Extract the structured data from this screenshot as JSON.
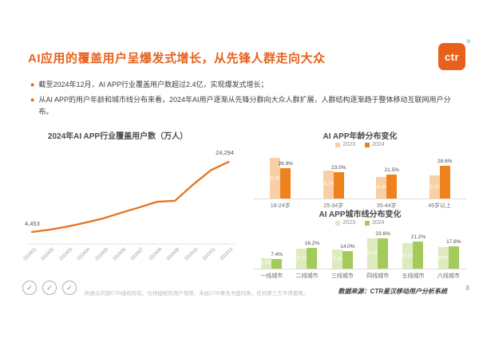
{
  "slide": {
    "title": "AI应用的覆盖用户呈爆发式增长，从先锋人群走向大众",
    "logo": {
      "text": "ctr",
      "mark": "®"
    },
    "bullets": [
      "截至2024年12月，AI APP行业覆盖用户数超过2.4亿，实现爆发式增长；",
      "从AI APP的用户年龄和城市线分布来看，2024年AI用户逐渐从先锋分群向大众人群扩展，人群结构逐渐趋于整体移动互联网用户分布。"
    ],
    "footer": {
      "seal_glyph": "✓",
      "copyright": "所展示内容CTR版权所有，仅供授权的用户使用，未经CTR事先书面同意，任何第三方不得使用。",
      "source": "数据来源：CTR星汉移动用户分析系统",
      "page_number": "8"
    }
  },
  "colors": {
    "accent_orange": "#E8611C",
    "line_orange": "#E8711A",
    "bar_2023_orange": "#F8CFA6",
    "bar_2024_orange": "#F0821E",
    "bar_2023_green": "#DEEBBE",
    "bar_2024_green": "#A2CB5B"
  },
  "chart_data": [
    {
      "type": "line",
      "title": "2024年AI APP行业覆盖用户数（万人）",
      "x": [
        "202401",
        "202402",
        "202403",
        "202404",
        "202405",
        "202406",
        "202407",
        "202408",
        "202409",
        "202410",
        "202411",
        "202412"
      ],
      "values": [
        4453,
        5100,
        6000,
        7100,
        8300,
        9900,
        11400,
        13000,
        13300,
        17800,
        21900,
        24294
      ],
      "first_label": "4,453",
      "last_label": "24,294",
      "line_color": "#E8711A",
      "ylim": [
        0,
        26000
      ],
      "grid": false
    },
    {
      "type": "bar",
      "title": "AI APP年龄分布变化",
      "categories": [
        "18-24岁",
        "25-34岁",
        "35-44岁",
        "45岁以上"
      ],
      "series": [
        {
          "name": "2023",
          "color": "#F8CFA6",
          "values": [
            35.8,
            24.7,
            19.4,
            20.2
          ]
        },
        {
          "name": "2024",
          "color": "#F0821E",
          "values": [
            26.9,
            23.0,
            21.5,
            28.6
          ]
        }
      ],
      "unit": "%",
      "legend_position": "top"
    },
    {
      "type": "bar",
      "title": "AI APP城市线分布变化",
      "categories": [
        "一线城市",
        "二线城市",
        "三线城市",
        "四线城市",
        "五线城市",
        "六线城市"
      ],
      "series": [
        {
          "name": "2023",
          "color": "#DEEBBE",
          "values": [
            8.3,
            15.7,
            15.2,
            23.8,
            20.1,
            16.9
          ]
        },
        {
          "name": "2024",
          "color": "#A2CB5B",
          "values": [
            7.4,
            16.2,
            14.0,
            23.6,
            21.2,
            17.6
          ]
        }
      ],
      "unit": "%",
      "legend_position": "top"
    }
  ]
}
